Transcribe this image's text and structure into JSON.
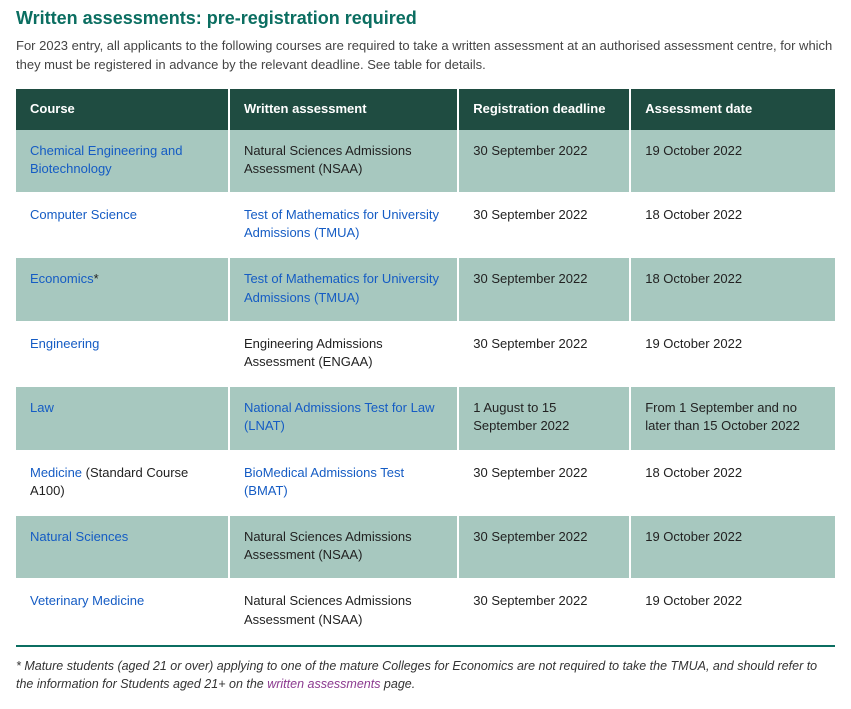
{
  "title": "Written assessments: pre-registration required",
  "intro": "For 2023 entry, all applicants to the following courses are required to take a written assessment at an authorised assessment centre, for which they must be registered in advance by the relevant deadline. See table for details.",
  "columns": {
    "course": "Course",
    "assessment": "Written assessment",
    "deadline": "Registration deadline",
    "date": "Assessment date"
  },
  "rows": [
    {
      "course_link": "Chemical Engineering and Biotechnology",
      "course_suffix": "",
      "assessment_link": "",
      "assessment_text": "Natural Sciences Admissions Assessment (NSAA)",
      "deadline": "30 September 2022",
      "date": "19 October 2022",
      "alt": true
    },
    {
      "course_link": "Computer Science",
      "course_suffix": "",
      "assessment_link": "Test of Mathematics for University Admissions (TMUA)",
      "assessment_text": "",
      "deadline": "30 September 2022",
      "date": "18 October 2022",
      "alt": false
    },
    {
      "course_link": "Economics",
      "course_suffix": "*",
      "assessment_link": "Test of Mathematics for University Admissions (TMUA)",
      "assessment_text": "",
      "deadline": "30 September 2022",
      "date": "18 October 2022",
      "alt": true
    },
    {
      "course_link": "Engineering",
      "course_suffix": "",
      "assessment_link": "",
      "assessment_text": "Engineering Admissions Assessment (ENGAA)",
      "deadline": "30 September 2022",
      "date": "19 October 2022",
      "alt": false
    },
    {
      "course_link": "Law",
      "course_suffix": "",
      "assessment_link": "National Admissions Test for Law (LNAT)",
      "assessment_text": "",
      "deadline": "1 August to 15 September 2022",
      "date": "From 1 September and no later than 15 October 2022",
      "alt": true
    },
    {
      "course_link": "Medicine",
      "course_suffix": " (Standard Course A100)",
      "assessment_link": "BioMedical Admissions Test (BMAT)",
      "assessment_text": "",
      "deadline": "30 September 2022",
      "date": "18 October 2022",
      "alt": false
    },
    {
      "course_link": "Natural Sciences",
      "course_suffix": "",
      "assessment_link": "",
      "assessment_text": "Natural Sciences Admissions Assessment (NSAA)",
      "deadline": "30 September 2022",
      "date": "19 October 2022",
      "alt": true
    },
    {
      "course_link": "Veterinary Medicine",
      "course_suffix": "",
      "assessment_link": "",
      "assessment_text": "Natural Sciences Admissions Assessment (NSAA)",
      "deadline": "30 September 2022",
      "date": "19 October 2022",
      "alt": false
    }
  ],
  "footnote": {
    "prefix": "* Mature students (aged 21 or over) applying to one of the mature Colleges for Economics are not required to take the TMUA, and should refer to the information for Students aged 21+ on the ",
    "link_text": "written assessments",
    "suffix": " page."
  },
  "colors": {
    "accent": "#0b6e61",
    "header_bg": "#1f4c41",
    "row_alt": "#a7c8bf",
    "link": "#155cc4",
    "visited": "#8b3a8f"
  }
}
